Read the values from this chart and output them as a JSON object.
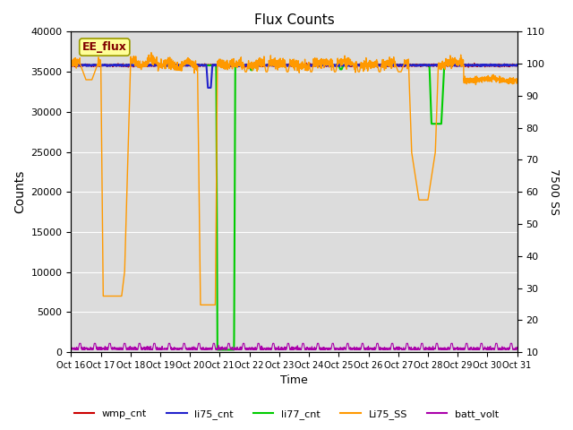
{
  "title": "Flux Counts",
  "xlabel": "Time",
  "ylabel_left": "Counts",
  "ylabel_right": "7500 SS",
  "xlim": [
    0,
    15
  ],
  "ylim_left": [
    0,
    40000
  ],
  "ylim_right": [
    10,
    110
  ],
  "yticks_left": [
    0,
    5000,
    10000,
    15000,
    20000,
    25000,
    30000,
    35000,
    40000
  ],
  "yticks_right": [
    10,
    20,
    30,
    40,
    50,
    60,
    70,
    80,
    90,
    100,
    110
  ],
  "xtick_labels": [
    "Oct 16",
    "Oct 17",
    "Oct 18",
    "Oct 19",
    "Oct 20",
    "Oct 21",
    "Oct 22",
    "Oct 23",
    "Oct 24",
    "Oct 25",
    "Oct 26",
    "Oct 27",
    "Oct 28",
    "Oct 29",
    "Oct 30",
    "Oct 31"
  ],
  "bg_color": "#dcdcdc",
  "legend_label": "EE_flux",
  "legend_bg": "#ffff99",
  "legend_border": "#999900",
  "series": {
    "wmp_cnt": {
      "color": "#cc0000",
      "lw": 0.8
    },
    "li75_cnt": {
      "color": "#2222cc",
      "lw": 1.5
    },
    "li77_cnt": {
      "color": "#00cc00",
      "lw": 1.5
    },
    "Li75_SS": {
      "color": "#ff9900",
      "lw": 1.0
    },
    "batt_volt": {
      "color": "#aa00aa",
      "lw": 0.8
    }
  }
}
